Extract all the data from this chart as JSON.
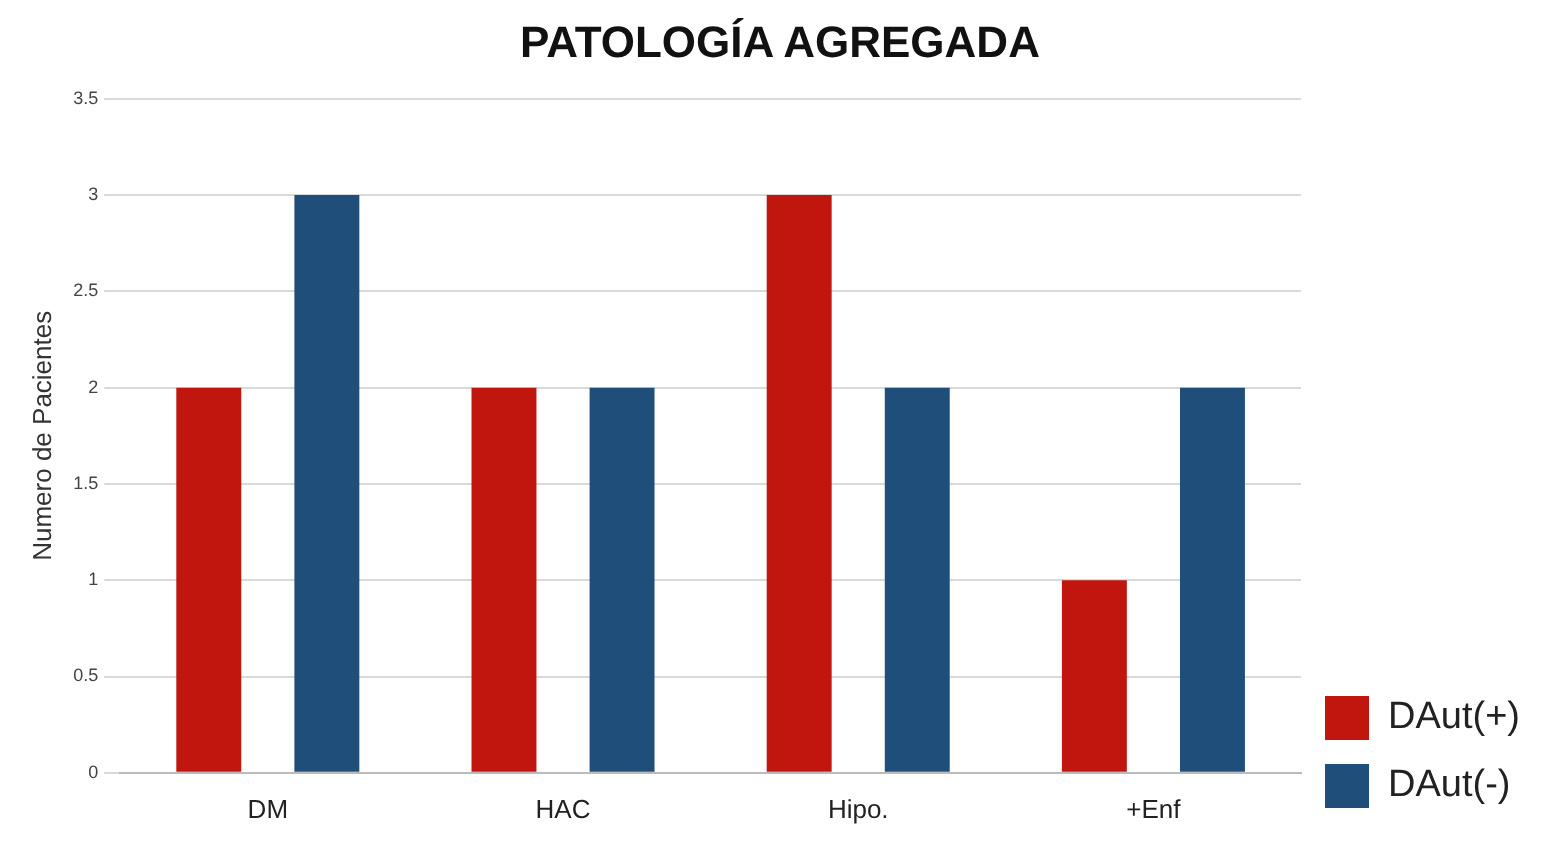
{
  "chart_data": {
    "type": "bar",
    "title": "PATOLOGÍA AGREGADA",
    "ylabel": "Numero de Pacientes",
    "categories": [
      "DM",
      "HAC",
      "Hipo.",
      "+Enf"
    ],
    "series": [
      {
        "name": "DAut(+)",
        "color": "#c0160e",
        "values": [
          2,
          2,
          3,
          1
        ]
      },
      {
        "name": "DAut(-)",
        "color": "#1f4e7a",
        "values": [
          3,
          2,
          2,
          2
        ]
      }
    ],
    "ylim": [
      0,
      3.5
    ],
    "yticks": [
      0,
      0.5,
      1,
      1.5,
      2,
      2.5,
      3,
      3.5
    ],
    "grid": "y",
    "legend": "bottom right"
  }
}
